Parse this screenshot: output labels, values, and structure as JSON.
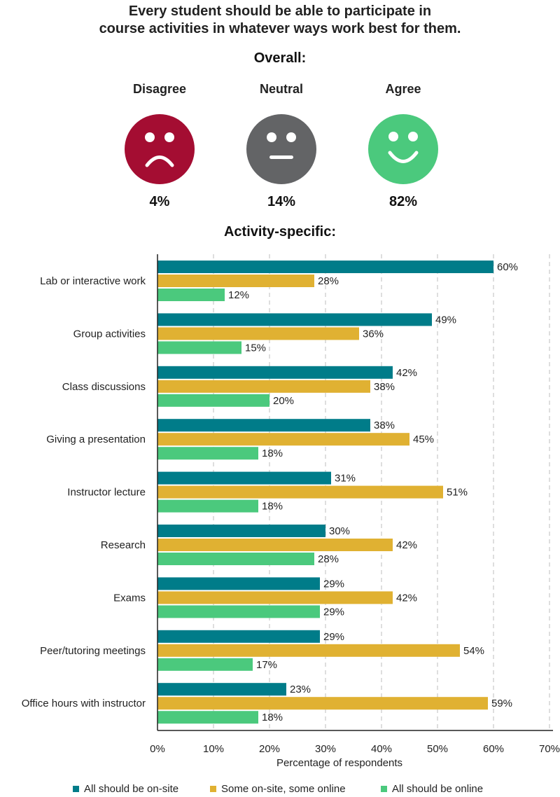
{
  "title_line1": "Every student should be able to participate in",
  "title_line2": "course activities in whatever ways work best for them.",
  "overall": {
    "heading": "Overall:",
    "items": [
      {
        "label": "Disagree",
        "percent": "4%",
        "color": "#a40d32",
        "icon": "sad-face-icon"
      },
      {
        "label": "Neutral",
        "percent": "14%",
        "color": "#636466",
        "icon": "neutral-face-icon"
      },
      {
        "label": "Agree",
        "percent": "82%",
        "color": "#4bc97d",
        "icon": "happy-face-icon"
      }
    ]
  },
  "activity_heading": "Activity-specific:",
  "chart_data": {
    "type": "bar",
    "orientation": "horizontal",
    "categories": [
      "Lab or interactive work",
      "Group activities",
      "Class discussions",
      "Giving a presentation",
      "Instructor lecture",
      "Research",
      "Exams",
      "Peer/tutoring meetings",
      "Office hours with instructor"
    ],
    "series": [
      {
        "name": "All should be on-site",
        "color": "#007c89",
        "values": [
          60,
          49,
          42,
          38,
          31,
          30,
          29,
          29,
          23
        ]
      },
      {
        "name": "Some on-site, some online",
        "color": "#e0b132",
        "values": [
          28,
          36,
          38,
          45,
          51,
          42,
          42,
          54,
          59
        ]
      },
      {
        "name": "All should be online",
        "color": "#4bc97d",
        "values": [
          12,
          15,
          20,
          18,
          18,
          28,
          29,
          17,
          18
        ]
      }
    ],
    "xlabel": "Percentage of respondents",
    "xlim": [
      0,
      70
    ],
    "xticks": [
      0,
      10,
      20,
      30,
      40,
      50,
      60,
      70
    ],
    "tick_labels": [
      "0%",
      "10%",
      "20%",
      "30%",
      "40%",
      "50%",
      "60%",
      "70%"
    ],
    "value_suffix": "%",
    "grid": "vertical dashed",
    "legend_position": "bottom"
  }
}
